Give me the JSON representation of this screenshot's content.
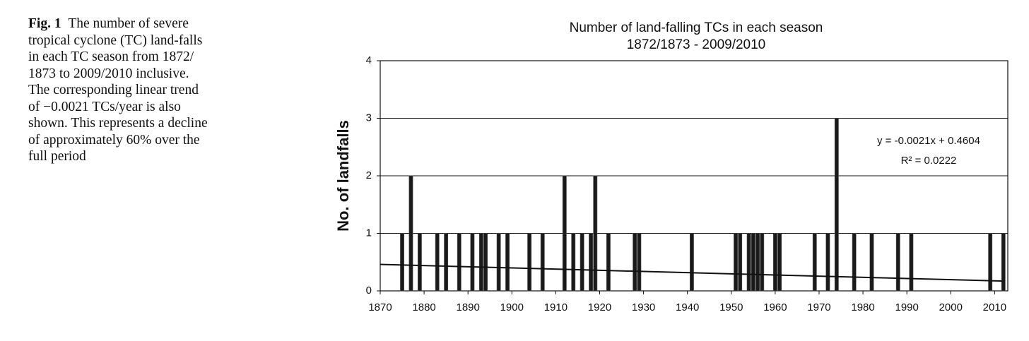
{
  "caption": {
    "label": "Fig. 1",
    "lines": [
      "The number of severe",
      "tropical cyclone (TC) land-falls",
      "in each TC season from 1872/",
      "1873 to 2009/2010 inclusive.",
      "The corresponding linear trend",
      "of −0.0021 TCs/year is also",
      "shown. This represents a decline",
      "of approximately 60% over the",
      "full period"
    ]
  },
  "chart_data": {
    "type": "bar",
    "title": "Number of land-falling TCs in each season",
    "subtitle": "1872/1873 - 2009/2010",
    "y_label": "No. of landfalls",
    "color": "#1a1a1a",
    "grid": true,
    "x": [
      1875,
      1877,
      1879,
      1883,
      1885,
      1888,
      1891,
      1893,
      1894,
      1897,
      1899,
      1904,
      1907,
      1912,
      1914,
      1916,
      1918,
      1919,
      1922,
      1928,
      1929,
      1941,
      1951,
      1952,
      1954,
      1955,
      1956,
      1957,
      1960,
      1961,
      1969,
      1972,
      1974,
      1978,
      1982,
      1988,
      1991,
      2009,
      2012
    ],
    "values": [
      1,
      2,
      1,
      1,
      1,
      1,
      1,
      1,
      1,
      1,
      1,
      1,
      1,
      2,
      1,
      1,
      1,
      2,
      1,
      1,
      1,
      1,
      1,
      1,
      1,
      1,
      1,
      1,
      1,
      1,
      1,
      1,
      3,
      1,
      1,
      1,
      1,
      1,
      1
    ],
    "trend": {
      "x": [
        1870,
        2012
      ],
      "values": [
        0.46,
        0.17
      ]
    },
    "annotation": [
      "y = -0.0021x + 0.4604",
      "R² = 0.0222"
    ],
    "xlim": [
      1870,
      2013
    ],
    "ylim": [
      0,
      4
    ],
    "xticks": [
      1870,
      1880,
      1890,
      1900,
      1910,
      1920,
      1930,
      1940,
      1950,
      1960,
      1970,
      1980,
      1990,
      2000,
      2010
    ],
    "yticks": [
      0,
      1,
      2,
      3,
      4
    ]
  }
}
